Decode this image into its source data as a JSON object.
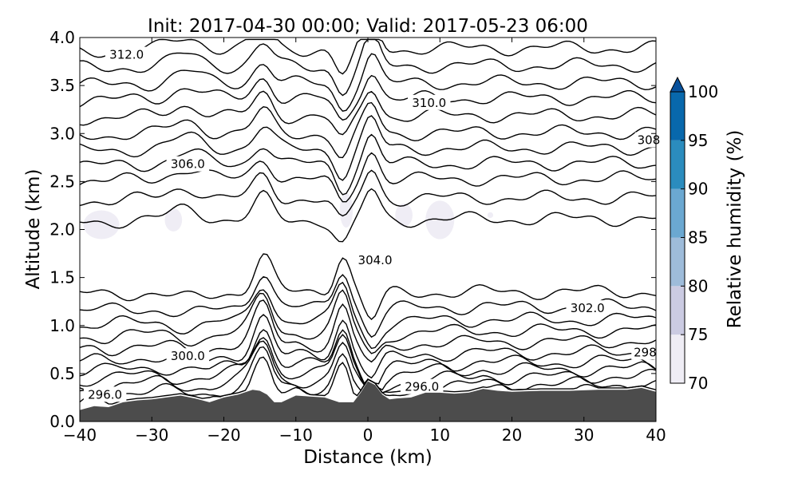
{
  "chart_data": {
    "type": "contour",
    "title": "Init: 2017-04-30 00:00; Valid: 2017-05-23 06:00",
    "xlabel": "Distance (km)",
    "ylabel": "Altitude (km)",
    "xlim": [
      -40,
      40
    ],
    "ylim": [
      0.0,
      4.0
    ],
    "x_ticks": [
      "−40",
      "−30",
      "−20",
      "−10",
      "0",
      "10",
      "20",
      "30",
      "40"
    ],
    "y_ticks": [
      "0.0",
      "0.5",
      "1.0",
      "1.5",
      "2.0",
      "2.5",
      "3.0",
      "3.5",
      "4.0"
    ],
    "colorbar": {
      "label": "Relative humidity (%)",
      "levels": [
        70,
        75,
        80,
        85,
        90,
        95,
        100
      ],
      "tick_labels": [
        "70",
        "75",
        "80",
        "85",
        "90",
        "95",
        "100"
      ],
      "colors": [
        "#efedf5",
        "#cbcbe2",
        "#9ebcda",
        "#6ba8d1",
        "#2b8cbe",
        "#0868ac",
        "#08519c"
      ],
      "extend": "max"
    },
    "contour_labels": [
      {
        "text": "312.0",
        "x": -33.5,
        "y": 3.82
      },
      {
        "text": "310.0",
        "x": 8.5,
        "y": 3.32
      },
      {
        "text": "308",
        "x": 39.0,
        "y": 2.93
      },
      {
        "text": "306.0",
        "x": -25.0,
        "y": 2.68
      },
      {
        "text": "304.0",
        "x": 1.0,
        "y": 1.68
      },
      {
        "text": "302.0",
        "x": 30.5,
        "y": 1.18
      },
      {
        "text": "300.0",
        "x": -25.0,
        "y": 0.68
      },
      {
        "text": "298",
        "x": 38.5,
        "y": 0.72
      },
      {
        "text": "296.0",
        "x": -36.5,
        "y": 0.28
      },
      {
        "text": "296.0",
        "x": 7.5,
        "y": 0.36
      }
    ],
    "terrain_color": "#4c4c4c"
  }
}
